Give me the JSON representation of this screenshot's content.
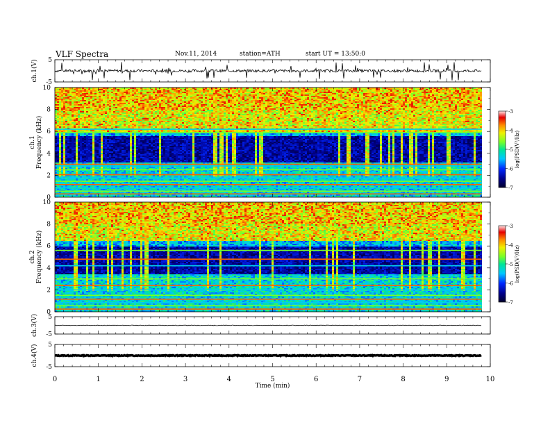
{
  "header": {
    "title": "VLF Spectra",
    "date": "Nov.11, 2014",
    "station": "station=ATH",
    "start": "start UT = 13:50:0"
  },
  "chart_data": [
    {
      "type": "line",
      "panel": "ch1-waveform",
      "ylabel": "ch.1(V)",
      "yticks": [
        "5",
        "-5"
      ],
      "ylim": [
        -5,
        5
      ],
      "baseline": 0,
      "series": [
        {
          "values_summary": "noisy trace around 0 V with frequent impulsive spikes (sferics)"
        }
      ]
    },
    {
      "type": "heatmap",
      "panel": "ch1-spectrogram",
      "ylabel_channel": "ch.1",
      "ylabel": "Frequency (kHz)",
      "ylim": [
        0,
        10
      ],
      "yticks": [
        "0",
        "2",
        "4",
        "6",
        "8",
        "10"
      ],
      "colorbar": {
        "label": "log(PSD(V²/Hz)",
        "ticks": [
          "-3",
          "-4",
          "-5",
          "-6",
          "-7"
        ],
        "range": [
          -7,
          -3
        ]
      },
      "xlim": [
        0,
        9.8
      ],
      "features": {
        "dark_band_khz": [
          3.2,
          5.6
        ],
        "bright_band_khz": [
          6.0,
          10
        ],
        "horizontal_lines_khz": [
          0.3,
          0.55,
          0.85,
          1.15,
          1.45,
          1.75,
          2.05,
          2.5,
          2.85,
          3.0,
          5.9,
          6.2
        ]
      }
    },
    {
      "type": "heatmap",
      "panel": "ch2-spectrogram",
      "ylabel_channel": "ch.2",
      "ylabel": "Frequency (kHz)",
      "ylim": [
        0,
        10
      ],
      "yticks": [
        "0",
        "2",
        "4",
        "6",
        "8",
        "10"
      ],
      "colorbar": {
        "label": "log(PSD(V²/Hz)",
        "ticks": [
          "-3",
          "-4",
          "-5",
          "-6",
          "-7"
        ],
        "range": [
          -7,
          -3
        ]
      },
      "xlim": [
        0,
        9.8
      ],
      "features": {
        "dark_band_khz": [
          3.5,
          6.0
        ],
        "bright_band_khz": [
          6.5,
          10
        ],
        "horizontal_lines_khz": [
          0.25,
          0.55,
          0.85,
          1.15,
          1.5,
          2.0,
          2.4,
          3.0,
          4.2,
          4.8,
          5.6
        ]
      }
    },
    {
      "type": "line",
      "panel": "ch3-waveform",
      "ylabel": "ch.3(V)",
      "yticks": [
        "5",
        "-5"
      ],
      "ylim": [
        -5,
        5
      ],
      "baseline": 0,
      "series": [
        {
          "values_summary": "flat trace near 0 V with small noise"
        }
      ]
    },
    {
      "type": "line",
      "panel": "ch4-waveform",
      "ylabel": "ch.4(V)",
      "yticks": [
        "5",
        "-5"
      ],
      "ylim": [
        -5,
        5
      ],
      "baseline": 0,
      "series": [
        {
          "values_summary": "thick flat trace at about 0 V"
        }
      ]
    }
  ],
  "xaxis": {
    "label": "Time (min)",
    "ticks": [
      "0",
      "1",
      "2",
      "3",
      "4",
      "5",
      "6",
      "7",
      "8",
      "9",
      "10"
    ],
    "range": [
      0,
      10
    ]
  }
}
